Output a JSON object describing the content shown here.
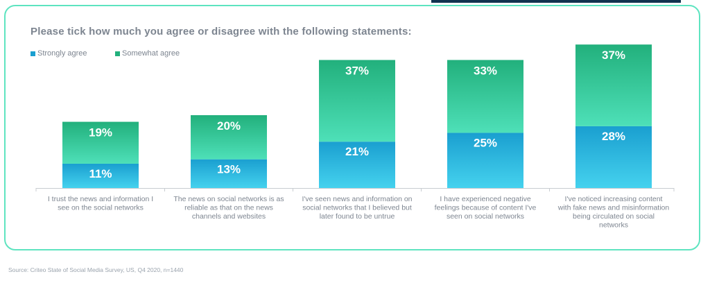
{
  "header": {
    "accent_color": "#12324f"
  },
  "card": {
    "border_color": "#5ee4c0"
  },
  "source": "Source: Criteo State of Social Media Survey, US, Q4 2020, n=1440",
  "chart_data": {
    "type": "bar",
    "stacked": true,
    "title": "Please tick how much you agree or disagree with the following statements:",
    "categories": [
      [
        "I trust the news and information I",
        "see on the social networks"
      ],
      [
        "The news on social networks is as",
        "reliable as that on the news",
        "channels and websites"
      ],
      [
        "I've seen news and information on",
        "social networks that I believed but",
        "later found to be untrue"
      ],
      [
        "I have experienced negative",
        "feelings because of content I've",
        "seen on social networks"
      ],
      [
        "I've noticed increasing content",
        "with fake news and misinformation",
        "being circulated on social",
        "networks"
      ]
    ],
    "series": [
      {
        "name": "Strongly agree",
        "values": [
          11,
          13,
          21,
          25,
          28
        ],
        "labels": [
          "11%",
          "13%",
          "21%",
          "25%",
          "28%"
        ],
        "color_top": "#1a9fd0",
        "color_bottom": "#45d2ee"
      },
      {
        "name": "Somewhat agree",
        "values": [
          19,
          20,
          37,
          33,
          37
        ],
        "labels": [
          "19%",
          "20%",
          "37%",
          "33%",
          "37%"
        ],
        "color_top": "#22b07c",
        "color_bottom": "#4ee0b8"
      }
    ],
    "ylim": [
      0,
      66
    ],
    "grid": false,
    "legend_position": "top-left"
  }
}
